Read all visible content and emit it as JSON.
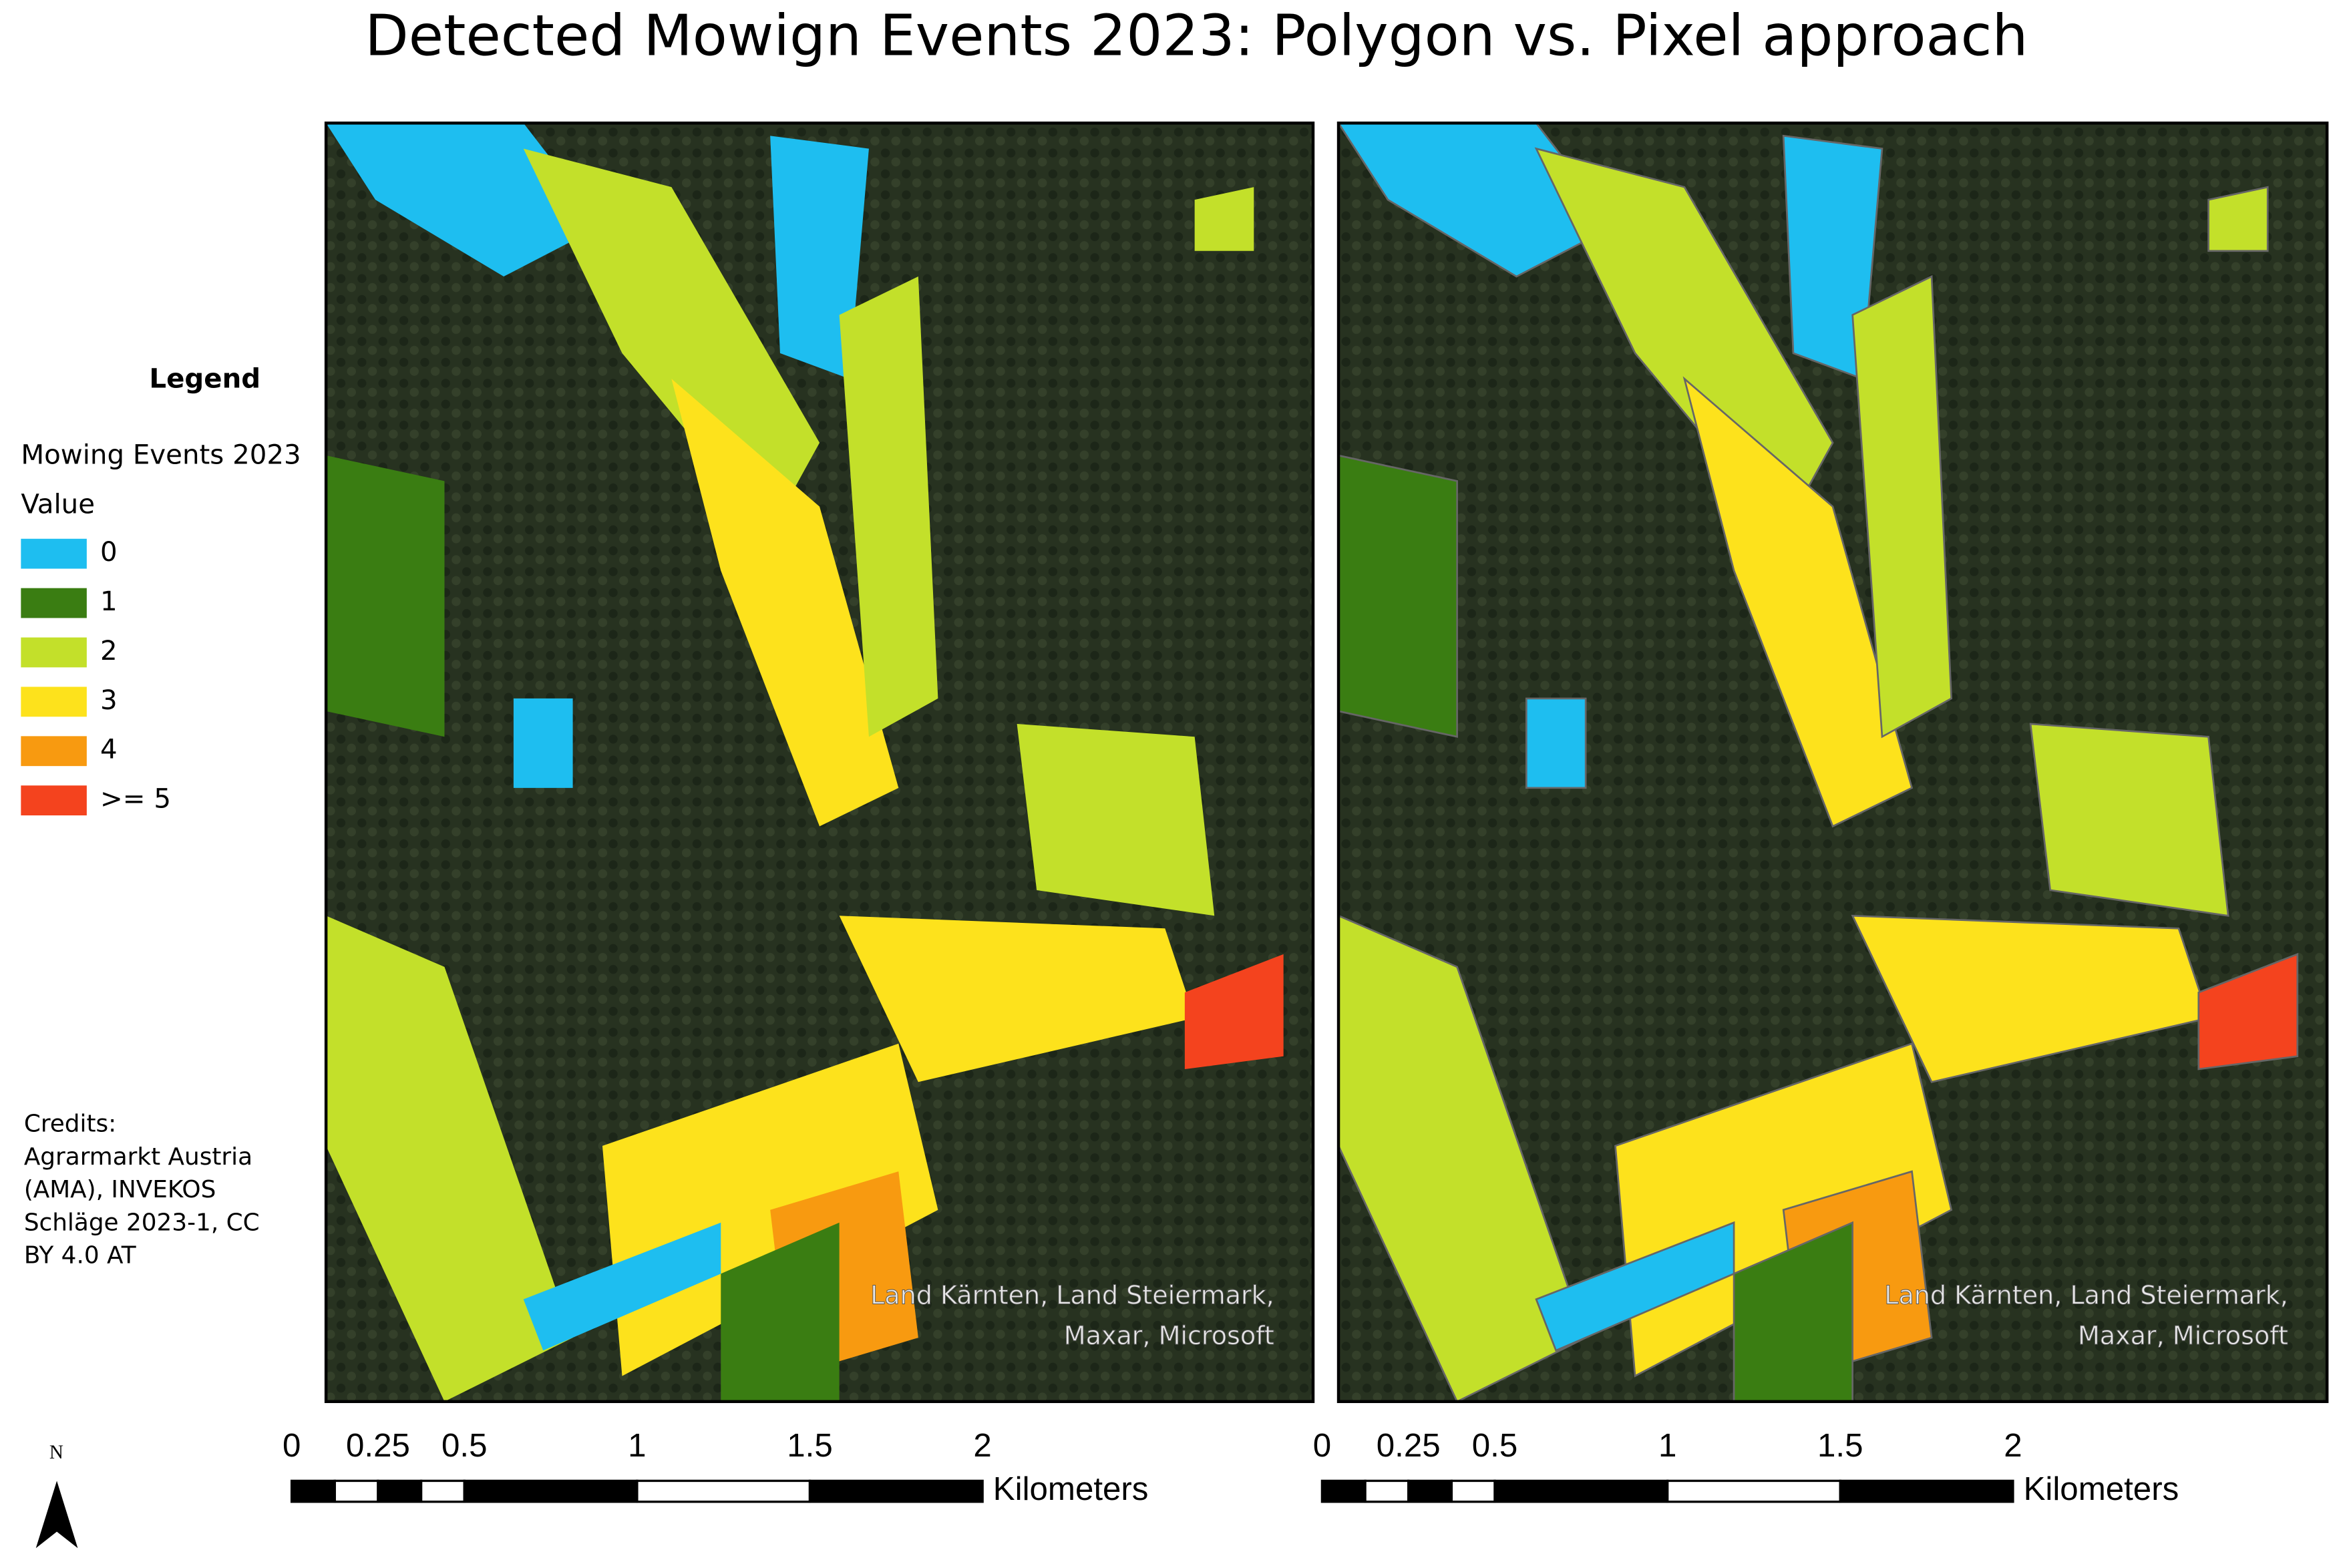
{
  "title": "Detected Mowign Events 2023: Polygon vs. Pixel approach",
  "legend": {
    "heading": "Legend",
    "layer": "Mowing Events 2023",
    "field": "Value",
    "items": [
      {
        "label": "0",
        "color": "#1ebef0"
      },
      {
        "label": "1",
        "color": "#3a7d12"
      },
      {
        "label": "2",
        "color": "#c3e02a"
      },
      {
        "label": "3",
        "color": "#fde21c"
      },
      {
        "label": "4",
        "color": "#f89a10"
      },
      {
        "label": ">= 5",
        "color": "#f4431e"
      }
    ]
  },
  "credits": [
    "Credits:",
    "Agrarmarkt Austria",
    "(AMA), INVEKOS",
    "Schläge 2023-1, CC",
    "BY 4.0 AT"
  ],
  "maps": [
    {
      "attribution": [
        "Land Kärnten, Land Steiermark,",
        "Maxar, Microsoft"
      ]
    },
    {
      "attribution": [
        "Land Kärnten, Land Steiermark,",
        "Maxar, Microsoft"
      ]
    }
  ],
  "scale_bar": {
    "ticks": [
      0,
      0.25,
      0.5,
      1,
      1.5,
      2
    ],
    "unit": "Kilometers"
  },
  "north": "N"
}
